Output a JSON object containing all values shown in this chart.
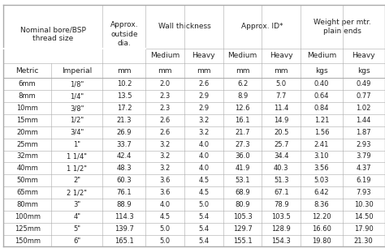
{
  "rows": [
    [
      "6mm",
      "1/8\"",
      "10.2",
      "2.0",
      "2.6",
      "6.2",
      "5.0",
      "0.40",
      "0.49"
    ],
    [
      "8mm",
      "1/4\"",
      "13.5",
      "2.3",
      "2.9",
      "8.9",
      "7.7",
      "0.64",
      "0.77"
    ],
    [
      "10mm",
      "3/8\"",
      "17.2",
      "2.3",
      "2.9",
      "12.6",
      "11.4",
      "0.84",
      "1.02"
    ],
    [
      "15mm",
      "1/2\"",
      "21.3",
      "2.6",
      "3.2",
      "16.1",
      "14.9",
      "1.21",
      "1.44"
    ],
    [
      "20mm",
      "3/4\"",
      "26.9",
      "2.6",
      "3.2",
      "21.7",
      "20.5",
      "1.56",
      "1.87"
    ],
    [
      "25mm",
      "1\"",
      "33.7",
      "3.2",
      "4.0",
      "27.3",
      "25.7",
      "2.41",
      "2.93"
    ],
    [
      "32mm",
      "1 1/4\"",
      "42.4",
      "3.2",
      "4.0",
      "36.0",
      "34.4",
      "3.10",
      "3.79"
    ],
    [
      "40mm",
      "1 1/2\"",
      "48.3",
      "3.2",
      "4.0",
      "41.9",
      "40.3",
      "3.56",
      "4.37"
    ],
    [
      "50mm",
      "2\"",
      "60.3",
      "3.6",
      "4.5",
      "53.1",
      "51.3",
      "5.03",
      "6.19"
    ],
    [
      "65mm",
      "2 1/2\"",
      "76.1",
      "3.6",
      "4.5",
      "68.9",
      "67.1",
      "6.42",
      "7.93"
    ],
    [
      "80mm",
      "3\"",
      "88.9",
      "4.0",
      "5.0",
      "80.9",
      "78.9",
      "8.36",
      "10.30"
    ],
    [
      "100mm",
      "4\"",
      "114.3",
      "4.5",
      "5.4",
      "105.3",
      "103.5",
      "12.20",
      "14.50"
    ],
    [
      "125mm",
      "5\"",
      "139.7",
      "5.0",
      "5.4",
      "129.7",
      "128.9",
      "16.60",
      "17.90"
    ],
    [
      "150mm",
      "6\"",
      "165.1",
      "5.0",
      "5.4",
      "155.1",
      "154.3",
      "19.80",
      "21.30"
    ]
  ],
  "bg_color": "#ffffff",
  "line_color": "#aaaaaa",
  "text_color": "#222222",
  "font_size": 6.0,
  "header_font_size": 6.5
}
